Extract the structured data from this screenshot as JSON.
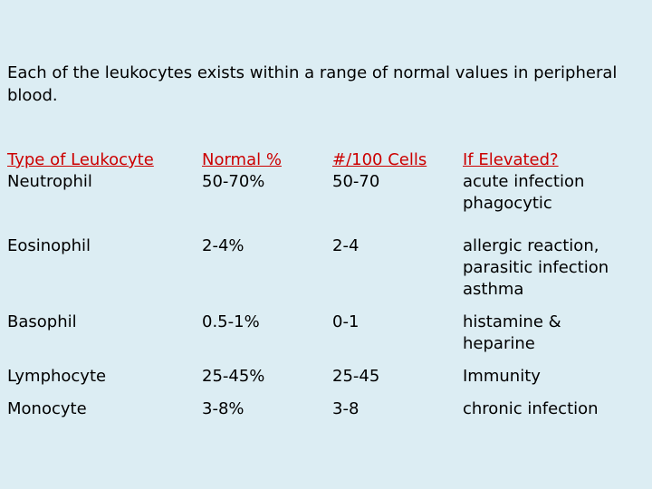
{
  "intro": "Each of the leukocytes exists within a range of normal values in peripheral blood.",
  "headers": {
    "type": "Type of Leukocyte",
    "normal": "Normal %",
    "count": "#/100 Cells",
    "elevated": "If Elevated?"
  },
  "rows": [
    {
      "type": "Neutrophil",
      "normal": "50-70%",
      "count": "50-70",
      "elevated": [
        "acute infection",
        "phagocytic"
      ]
    },
    {
      "type": "Eosinophil",
      "normal": "2-4%",
      "count": "2-4",
      "elevated": [
        "allergic reaction,",
        "parasitic infection",
        "asthma"
      ]
    },
    {
      "type": "Basophil",
      "normal": "0.5-1%",
      "count": "0-1",
      "elevated": [
        "histamine &",
        "heparine"
      ]
    },
    {
      "type": "Lymphocyte",
      "normal": "25-45%",
      "count": "25-45",
      "elevated": [
        "Immunity"
      ]
    },
    {
      "type": "Monocyte",
      "normal": "3-8%",
      "count": "3-8",
      "elevated": [
        "chronic infection"
      ]
    }
  ],
  "colors": {
    "background": "#dcedf3",
    "header_text": "#cc0000",
    "body_text": "#000000"
  }
}
